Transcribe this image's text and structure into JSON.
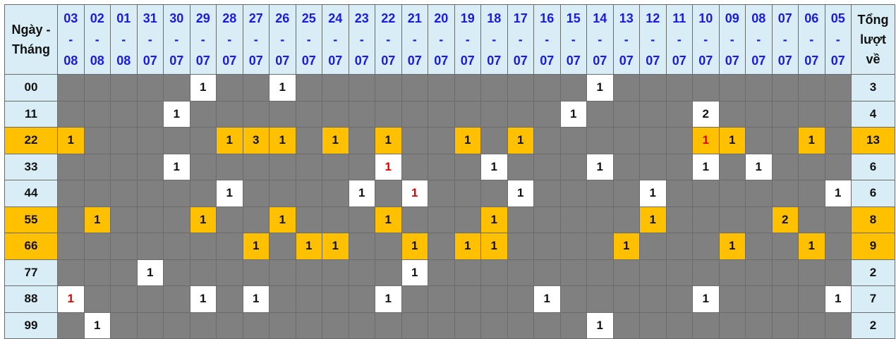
{
  "header": {
    "first_line1": "Ngày -",
    "first_line2": "Tháng",
    "last_line1": "Tổng",
    "last_line2": "lượt",
    "last_line3": "về",
    "separator": "-",
    "dates": [
      {
        "day": "03",
        "month": "08"
      },
      {
        "day": "02",
        "month": "08"
      },
      {
        "day": "01",
        "month": "08"
      },
      {
        "day": "31",
        "month": "07"
      },
      {
        "day": "30",
        "month": "07"
      },
      {
        "day": "29",
        "month": "07"
      },
      {
        "day": "28",
        "month": "07"
      },
      {
        "day": "27",
        "month": "07"
      },
      {
        "day": "26",
        "month": "07"
      },
      {
        "day": "25",
        "month": "07"
      },
      {
        "day": "24",
        "month": "07"
      },
      {
        "day": "23",
        "month": "07"
      },
      {
        "day": "22",
        "month": "07"
      },
      {
        "day": "21",
        "month": "07"
      },
      {
        "day": "20",
        "month": "07"
      },
      {
        "day": "19",
        "month": "07"
      },
      {
        "day": "18",
        "month": "07"
      },
      {
        "day": "17",
        "month": "07"
      },
      {
        "day": "16",
        "month": "07"
      },
      {
        "day": "15",
        "month": "07"
      },
      {
        "day": "14",
        "month": "07"
      },
      {
        "day": "13",
        "month": "07"
      },
      {
        "day": "12",
        "month": "07"
      },
      {
        "day": "11",
        "month": "07"
      },
      {
        "day": "10",
        "month": "07"
      },
      {
        "day": "09",
        "month": "07"
      },
      {
        "day": "08",
        "month": "07"
      },
      {
        "day": "07",
        "month": "07"
      },
      {
        "day": "06",
        "month": "07"
      },
      {
        "day": "05",
        "month": "07"
      }
    ]
  },
  "colors": {
    "highlight_row": "#ffc000",
    "empty_cell": "#808080",
    "hit_cell": "#ffffff",
    "header_bg": "#d9edf7",
    "date_text": "#1a1ae6",
    "red_value": "#e00000"
  },
  "rows": [
    {
      "label": "00",
      "highlight": false,
      "total": "3",
      "cells": [
        "",
        "",
        "",
        "",
        "",
        "1",
        "",
        "",
        "1",
        "",
        "",
        "",
        "",
        "",
        "",
        "",
        "",
        "",
        "",
        "",
        "1",
        "",
        "",
        "",
        "",
        "",
        "",
        "",
        "",
        ""
      ],
      "red": []
    },
    {
      "label": "11",
      "highlight": false,
      "total": "4",
      "cells": [
        "",
        "",
        "",
        "",
        "1",
        "",
        "",
        "",
        "",
        "",
        "",
        "",
        "",
        "",
        "",
        "",
        "",
        "",
        "",
        "1",
        "",
        "",
        "",
        "",
        "2",
        "",
        "",
        "",
        "",
        ""
      ],
      "red": []
    },
    {
      "label": "22",
      "highlight": true,
      "total": "13",
      "cells": [
        "1",
        "",
        "",
        "",
        "",
        "",
        "1",
        "3",
        "1",
        "",
        "1",
        "",
        "1",
        "",
        "",
        "1",
        "",
        "1",
        "",
        "",
        "",
        "",
        "",
        "",
        "1",
        "1",
        "",
        "",
        "1",
        ""
      ],
      "red": [
        24
      ]
    },
    {
      "label": "33",
      "highlight": false,
      "total": "6",
      "cells": [
        "",
        "",
        "",
        "",
        "1",
        "",
        "",
        "",
        "",
        "",
        "",
        "",
        "1",
        "",
        "",
        "",
        "1",
        "",
        "",
        "",
        "1",
        "",
        "",
        "",
        "1",
        "",
        "1",
        "",
        "",
        ""
      ],
      "red": [
        12
      ]
    },
    {
      "label": "44",
      "highlight": false,
      "total": "6",
      "cells": [
        "",
        "",
        "",
        "",
        "",
        "",
        "1",
        "",
        "",
        "",
        "",
        "1",
        "",
        "1",
        "",
        "",
        "",
        "1",
        "",
        "",
        "",
        "",
        "1",
        "",
        "",
        "",
        "",
        "",
        "",
        "1"
      ],
      "red": [
        13
      ]
    },
    {
      "label": "55",
      "highlight": true,
      "total": "8",
      "cells": [
        "",
        "1",
        "",
        "",
        "",
        "1",
        "",
        "",
        "1",
        "",
        "",
        "",
        "1",
        "",
        "",
        "",
        "1",
        "",
        "",
        "",
        "",
        "",
        "1",
        "",
        "",
        "",
        "",
        "2",
        "",
        ""
      ],
      "red": []
    },
    {
      "label": "66",
      "highlight": true,
      "total": "9",
      "cells": [
        "",
        "",
        "",
        "",
        "",
        "",
        "",
        "1",
        "",
        "1",
        "1",
        "",
        "",
        "1",
        "",
        "1",
        "1",
        "",
        "",
        "",
        "",
        "1",
        "",
        "",
        "",
        "1",
        "",
        "",
        "1",
        ""
      ],
      "red": []
    },
    {
      "label": "77",
      "highlight": false,
      "total": "2",
      "cells": [
        "",
        "",
        "",
        "1",
        "",
        "",
        "",
        "",
        "",
        "",
        "",
        "",
        "",
        "1",
        "",
        "",
        "",
        "",
        "",
        "",
        "",
        "",
        "",
        "",
        "",
        "",
        "",
        "",
        "",
        ""
      ],
      "red": []
    },
    {
      "label": "88",
      "highlight": false,
      "total": "7",
      "cells": [
        "1",
        "",
        "",
        "",
        "",
        "1",
        "",
        "1",
        "",
        "",
        "",
        "",
        "1",
        "",
        "",
        "",
        "",
        "",
        "1",
        "",
        "",
        "",
        "",
        "",
        "1",
        "",
        "",
        "",
        "",
        "1"
      ],
      "red": [
        0
      ]
    },
    {
      "label": "99",
      "highlight": false,
      "total": "2",
      "cells": [
        "",
        "1",
        "",
        "",
        "",
        "",
        "",
        "",
        "",
        "",
        "",
        "",
        "",
        "",
        "",
        "",
        "",
        "",
        "",
        "",
        "1",
        "",
        "",
        "",
        "",
        "",
        "",
        "",
        "",
        ""
      ],
      "red": []
    }
  ]
}
